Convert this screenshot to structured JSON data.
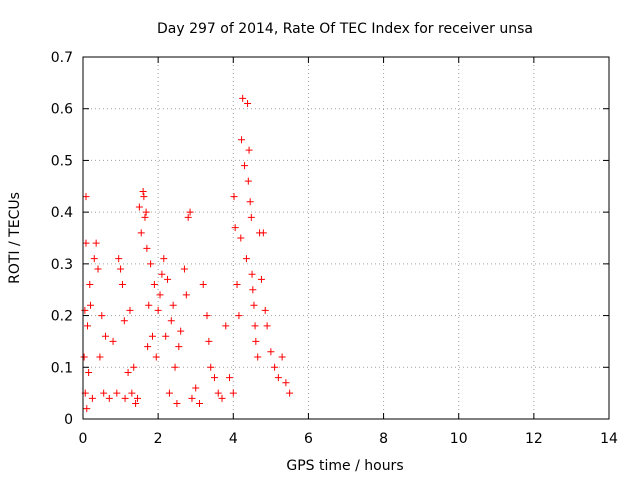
{
  "chart_data": {
    "type": "scatter",
    "title": "Day 297 of 2014, Rate Of TEC Index for receiver unsa",
    "xlabel": "GPS time / hours",
    "ylabel": "ROTI / TECUs",
    "xlim": [
      0,
      14
    ],
    "ylim": [
      0,
      0.7
    ],
    "x_ticks": [
      "0",
      "2",
      "4",
      "6",
      "8",
      "10",
      "12",
      "14"
    ],
    "y_ticks": [
      "0",
      "0.1",
      "0.2",
      "0.3",
      "0.4",
      "0.5",
      "0.6",
      "0.7"
    ],
    "grid": true,
    "marker": "+",
    "color": "#ff0000",
    "points": [
      [
        0.03,
        0.12
      ],
      [
        0.05,
        0.21
      ],
      [
        0.06,
        0.05
      ],
      [
        0.08,
        0.34
      ],
      [
        0.08,
        0.43
      ],
      [
        0.1,
        0.02
      ],
      [
        0.12,
        0.18
      ],
      [
        0.15,
        0.09
      ],
      [
        0.18,
        0.26
      ],
      [
        0.2,
        0.22
      ],
      [
        0.25,
        0.04
      ],
      [
        0.3,
        0.31
      ],
      [
        0.35,
        0.34
      ],
      [
        0.4,
        0.29
      ],
      [
        0.45,
        0.12
      ],
      [
        0.5,
        0.2
      ],
      [
        0.55,
        0.05
      ],
      [
        0.6,
        0.16
      ],
      [
        0.7,
        0.04
      ],
      [
        0.8,
        0.15
      ],
      [
        0.9,
        0.05
      ],
      [
        0.95,
        0.31
      ],
      [
        1.0,
        0.29
      ],
      [
        1.05,
        0.26
      ],
      [
        1.1,
        0.19
      ],
      [
        1.12,
        0.04
      ],
      [
        1.2,
        0.09
      ],
      [
        1.25,
        0.21
      ],
      [
        1.3,
        0.05
      ],
      [
        1.35,
        0.1
      ],
      [
        1.4,
        0.03
      ],
      [
        1.45,
        0.04
      ],
      [
        1.5,
        0.41
      ],
      [
        1.55,
        0.36
      ],
      [
        1.6,
        0.44
      ],
      [
        1.62,
        0.43
      ],
      [
        1.65,
        0.39
      ],
      [
        1.68,
        0.4
      ],
      [
        1.7,
        0.33
      ],
      [
        1.72,
        0.14
      ],
      [
        1.75,
        0.22
      ],
      [
        1.8,
        0.3
      ],
      [
        1.85,
        0.16
      ],
      [
        1.9,
        0.26
      ],
      [
        1.95,
        0.12
      ],
      [
        2.0,
        0.21
      ],
      [
        2.05,
        0.24
      ],
      [
        2.1,
        0.28
      ],
      [
        2.15,
        0.31
      ],
      [
        2.2,
        0.16
      ],
      [
        2.25,
        0.27
      ],
      [
        2.3,
        0.05
      ],
      [
        2.35,
        0.19
      ],
      [
        2.4,
        0.22
      ],
      [
        2.45,
        0.1
      ],
      [
        2.5,
        0.03
      ],
      [
        2.55,
        0.14
      ],
      [
        2.6,
        0.17
      ],
      [
        2.7,
        0.29
      ],
      [
        2.75,
        0.24
      ],
      [
        2.8,
        0.39
      ],
      [
        2.85,
        0.4
      ],
      [
        2.9,
        0.04
      ],
      [
        3.0,
        0.06
      ],
      [
        3.1,
        0.03
      ],
      [
        3.2,
        0.26
      ],
      [
        3.3,
        0.2
      ],
      [
        3.35,
        0.15
      ],
      [
        3.4,
        0.1
      ],
      [
        3.5,
        0.08
      ],
      [
        3.6,
        0.05
      ],
      [
        3.7,
        0.04
      ],
      [
        3.8,
        0.18
      ],
      [
        3.9,
        0.08
      ],
      [
        4.0,
        0.05
      ],
      [
        4.02,
        0.43
      ],
      [
        4.05,
        0.37
      ],
      [
        4.1,
        0.26
      ],
      [
        4.15,
        0.2
      ],
      [
        4.2,
        0.35
      ],
      [
        4.22,
        0.54
      ],
      [
        4.25,
        0.62
      ],
      [
        4.3,
        0.49
      ],
      [
        4.35,
        0.31
      ],
      [
        4.38,
        0.61
      ],
      [
        4.4,
        0.46
      ],
      [
        4.42,
        0.52
      ],
      [
        4.45,
        0.42
      ],
      [
        4.48,
        0.39
      ],
      [
        4.5,
        0.28
      ],
      [
        4.52,
        0.25
      ],
      [
        4.55,
        0.22
      ],
      [
        4.58,
        0.18
      ],
      [
        4.6,
        0.15
      ],
      [
        4.65,
        0.12
      ],
      [
        4.7,
        0.36
      ],
      [
        4.75,
        0.27
      ],
      [
        4.8,
        0.36
      ],
      [
        4.85,
        0.21
      ],
      [
        4.9,
        0.18
      ],
      [
        5.0,
        0.13
      ],
      [
        5.1,
        0.1
      ],
      [
        5.2,
        0.08
      ],
      [
        5.3,
        0.12
      ],
      [
        5.4,
        0.07
      ],
      [
        5.5,
        0.05
      ]
    ]
  }
}
